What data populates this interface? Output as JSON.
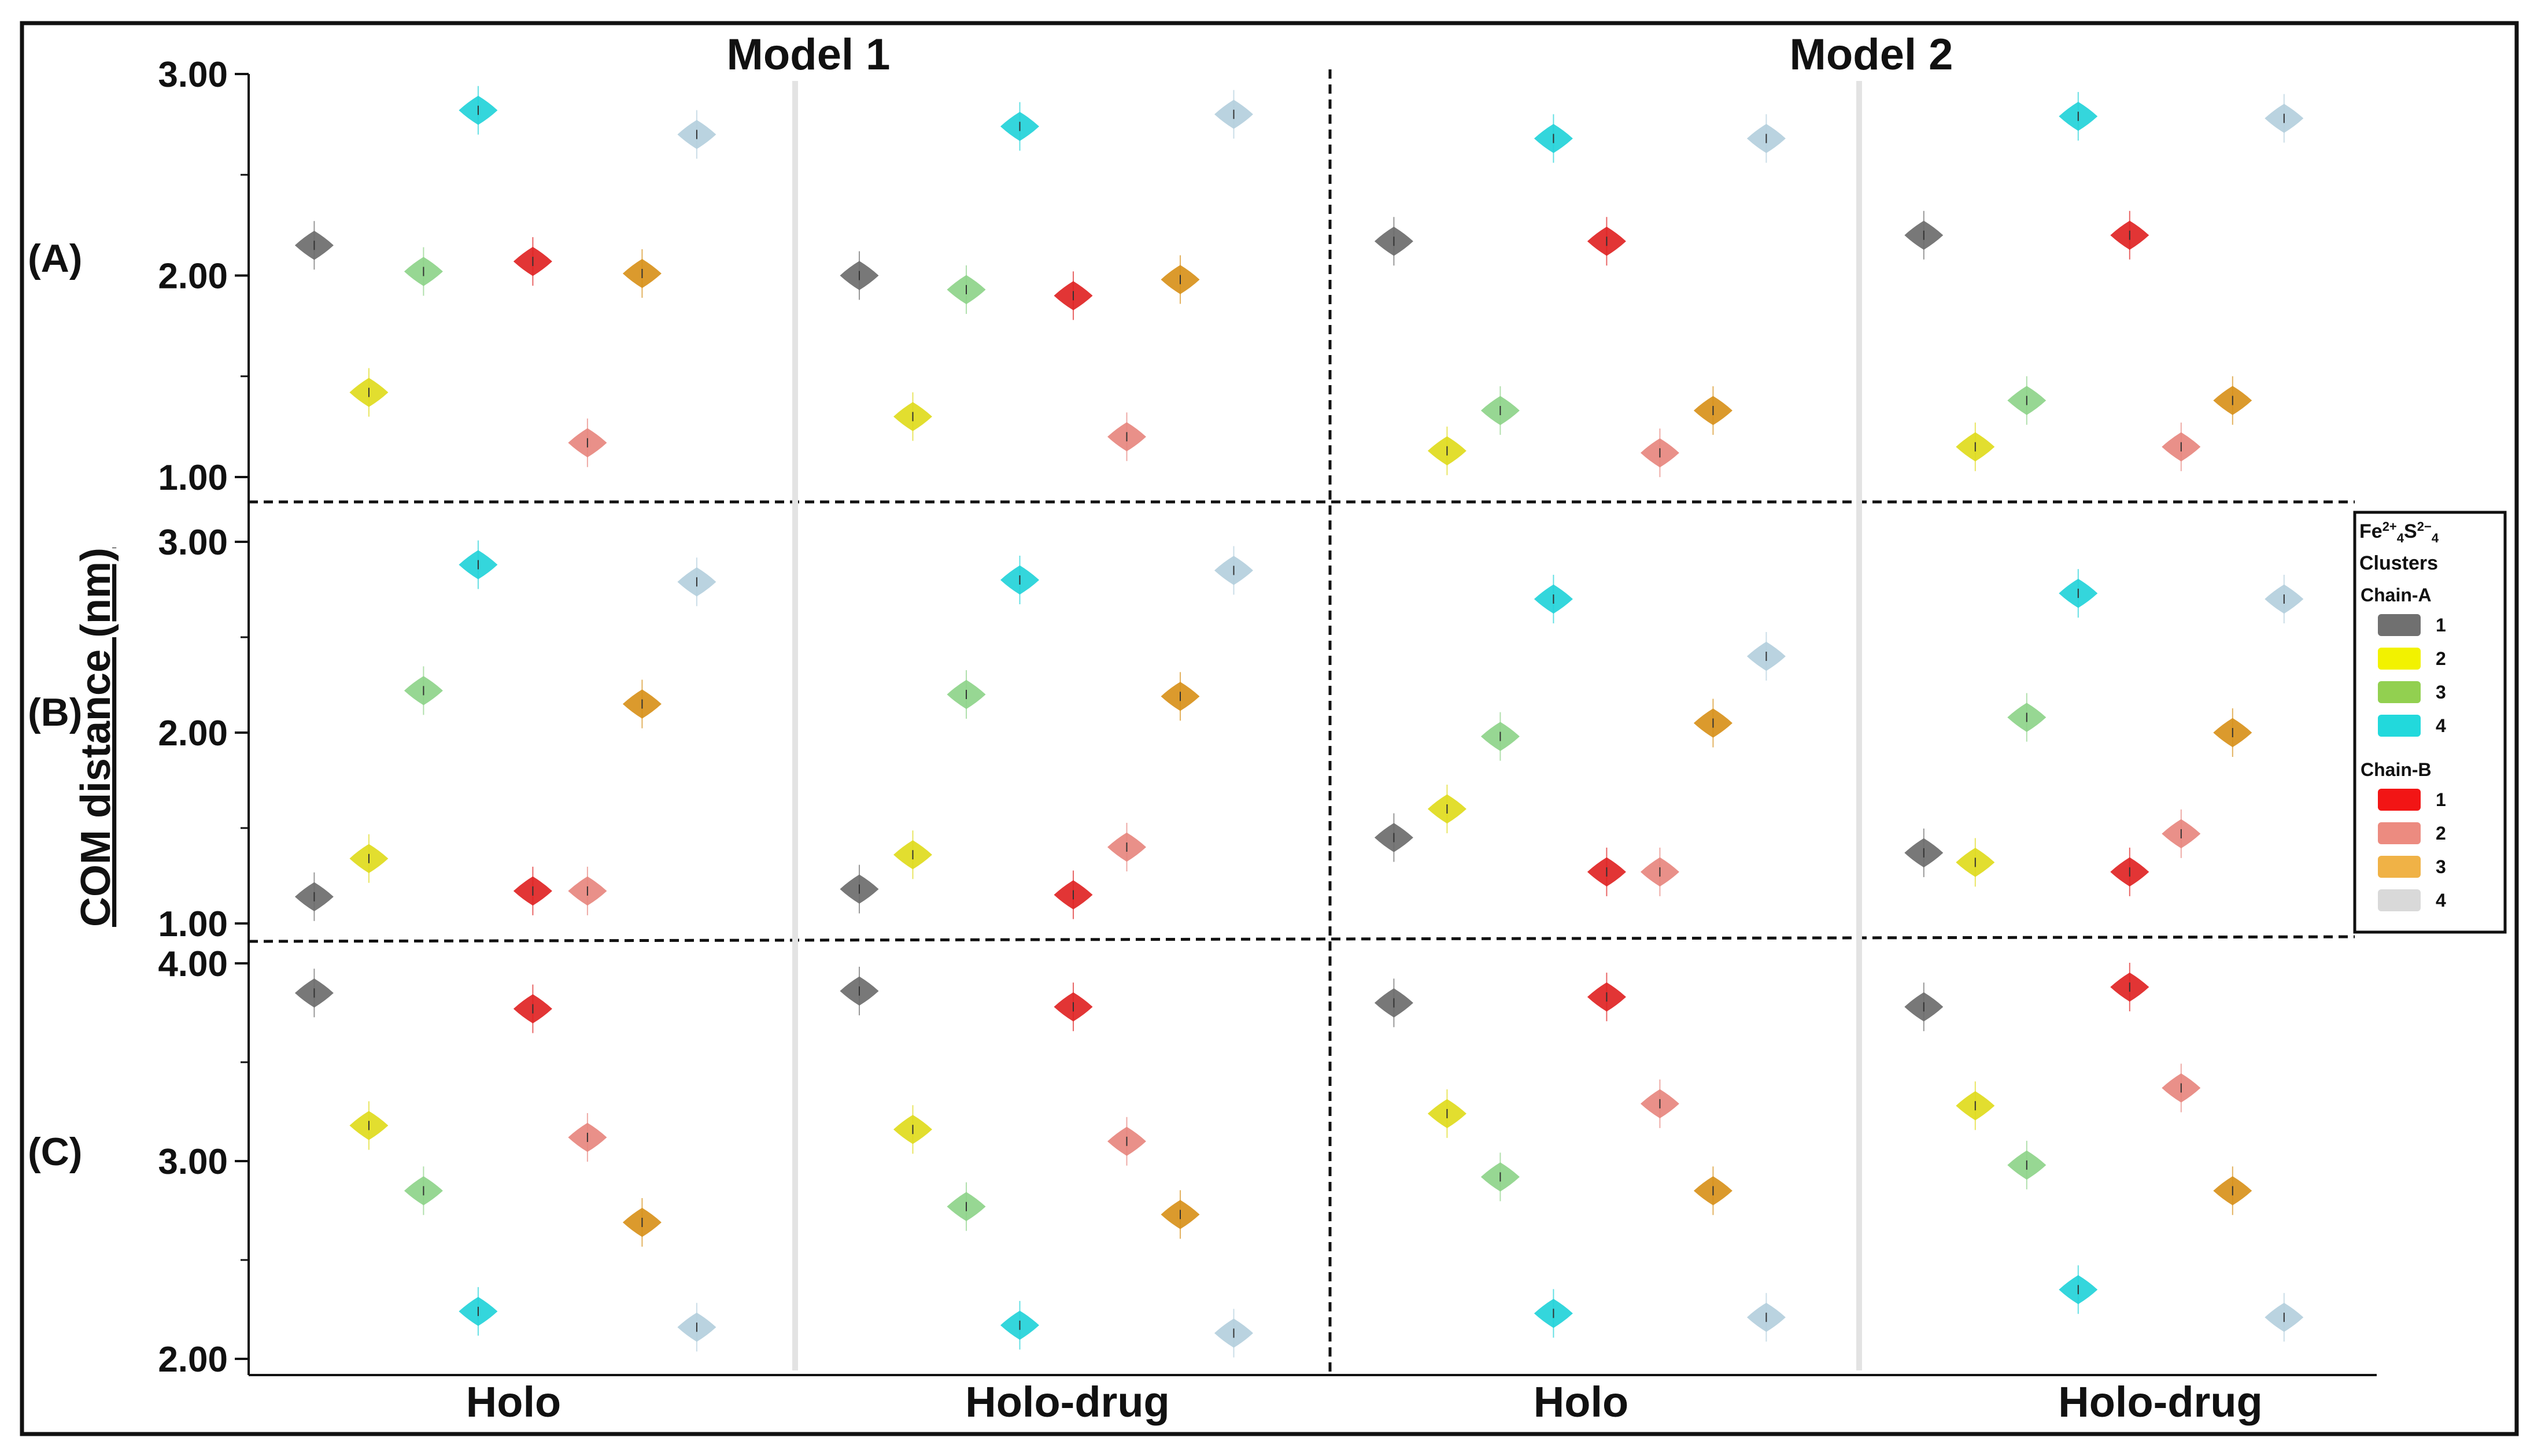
{
  "chart_data": {
    "type": "violin",
    "ylabel": "COM distance (nm)",
    "model_titles": [
      "Model 1",
      "Model 2"
    ],
    "condition_labels": [
      "Holo",
      "Holo-drug",
      "Holo",
      "Holo-drug"
    ],
    "legend": {
      "title_prefix": "Fe",
      "title_sup1": "2+",
      "title_sub1": "4",
      "title_mid": "S",
      "title_sup2": "2−",
      "title_sub2": "4",
      "subtitle": "Clusters",
      "groups": [
        {
          "label": "Chain-A",
          "items": [
            {
              "label": "1",
              "color": "#707070"
            },
            {
              "label": "2",
              "color": "#f2f200"
            },
            {
              "label": "3",
              "color": "#92d050"
            },
            {
              "label": "4",
              "color": "#22d9dc"
            }
          ]
        },
        {
          "label": "Chain-B",
          "items": [
            {
              "label": "1",
              "color": "#f21515"
            },
            {
              "label": "2",
              "color": "#ec8b80"
            },
            {
              "label": "3",
              "color": "#f0b246"
            },
            {
              "label": "4",
              "color": "#d9d9d9"
            }
          ]
        }
      ]
    },
    "series_order": [
      "A1",
      "A2",
      "A3",
      "A4",
      "B1",
      "B2",
      "B3",
      "B4"
    ],
    "series_colors": {
      "A1": "#6d6d6d",
      "A2": "#e0dc1e",
      "A3": "#8fd48a",
      "A4": "#23d3da",
      "B1": "#e02424",
      "B2": "#e8877f",
      "B3": "#d8921c",
      "B4": "#b5d0de"
    },
    "panels": [
      {
        "label": "(A)",
        "ylim": [
          1.0,
          3.0
        ],
        "yticks": [
          "3.00",
          "2.00",
          "1.00"
        ],
        "groups": [
          {
            "model": "Model 1",
            "condition": "Holo",
            "values": {
              "A1": 2.15,
              "A2": 1.42,
              "A3": 2.02,
              "A4": 2.82,
              "B1": 2.07,
              "B2": 1.17,
              "B3": 2.01,
              "B4": 2.7
            }
          },
          {
            "model": "Model 1",
            "condition": "Holo-drug",
            "values": {
              "A1": 2.0,
              "A2": 1.3,
              "A3": 1.93,
              "A4": 2.74,
              "B1": 1.9,
              "B2": 1.2,
              "B3": 1.98,
              "B4": 2.8
            }
          },
          {
            "model": "Model 2",
            "condition": "Holo",
            "values": {
              "A1": 2.17,
              "A2": 1.13,
              "A3": 1.33,
              "A4": 2.68,
              "B1": 2.17,
              "B2": 1.12,
              "B3": 1.33,
              "B4": 2.68
            }
          },
          {
            "model": "Model 2",
            "condition": "Holo-drug",
            "values": {
              "A1": 2.2,
              "A2": 1.15,
              "A3": 1.38,
              "A4": 2.79,
              "B1": 2.2,
              "B2": 1.15,
              "B3": 1.38,
              "B4": 2.78
            }
          }
        ]
      },
      {
        "label": "(B)",
        "ylim": [
          1.0,
          3.0
        ],
        "yticks": [
          "3.00",
          "2.00",
          "1.00"
        ],
        "groups": [
          {
            "model": "Model 1",
            "condition": "Holo",
            "values": {
              "A1": 1.14,
              "A2": 1.34,
              "A3": 2.22,
              "A4": 2.88,
              "B1": 1.17,
              "B2": 1.17,
              "B3": 2.15,
              "B4": 2.79
            }
          },
          {
            "model": "Model 1",
            "condition": "Holo-drug",
            "values": {
              "A1": 1.18,
              "A2": 1.36,
              "A3": 2.2,
              "A4": 2.8,
              "B1": 1.15,
              "B2": 1.4,
              "B3": 2.19,
              "B4": 2.85
            }
          },
          {
            "model": "Model 2",
            "condition": "Holo",
            "values": {
              "A1": 1.45,
              "A2": 1.6,
              "A3": 1.98,
              "A4": 2.7,
              "B1": 1.27,
              "B2": 1.27,
              "B3": 2.05,
              "B4": 2.4
            }
          },
          {
            "model": "Model 2",
            "condition": "Holo-drug",
            "values": {
              "A1": 1.37,
              "A2": 1.32,
              "A3": 2.08,
              "A4": 2.73,
              "B1": 1.27,
              "B2": 1.47,
              "B3": 2.0,
              "B4": 2.7
            }
          }
        ]
      },
      {
        "label": "(C)",
        "ylim": [
          2.0,
          4.0
        ],
        "yticks": [
          "4.00",
          "3.00",
          "2.00"
        ],
        "groups": [
          {
            "model": "Model 1",
            "condition": "Holo",
            "values": {
              "A1": 3.85,
              "A2": 3.18,
              "A3": 2.85,
              "A4": 2.24,
              "B1": 3.77,
              "B2": 3.12,
              "B3": 2.69,
              "B4": 2.16
            }
          },
          {
            "model": "Model 1",
            "condition": "Holo-drug",
            "values": {
              "A1": 3.86,
              "A2": 3.16,
              "A3": 2.77,
              "A4": 2.17,
              "B1": 3.78,
              "B2": 3.1,
              "B3": 2.73,
              "B4": 2.13
            }
          },
          {
            "model": "Model 2",
            "condition": "Holo",
            "values": {
              "A1": 3.8,
              "A2": 3.24,
              "A3": 2.92,
              "A4": 2.23,
              "B1": 3.83,
              "B2": 3.29,
              "B3": 2.85,
              "B4": 2.21
            }
          },
          {
            "model": "Model 2",
            "condition": "Holo-drug",
            "values": {
              "A1": 3.78,
              "A2": 3.28,
              "A3": 2.98,
              "A4": 2.35,
              "B1": 3.88,
              "B2": 3.37,
              "B3": 2.85,
              "B4": 2.21
            }
          }
        ]
      }
    ]
  }
}
